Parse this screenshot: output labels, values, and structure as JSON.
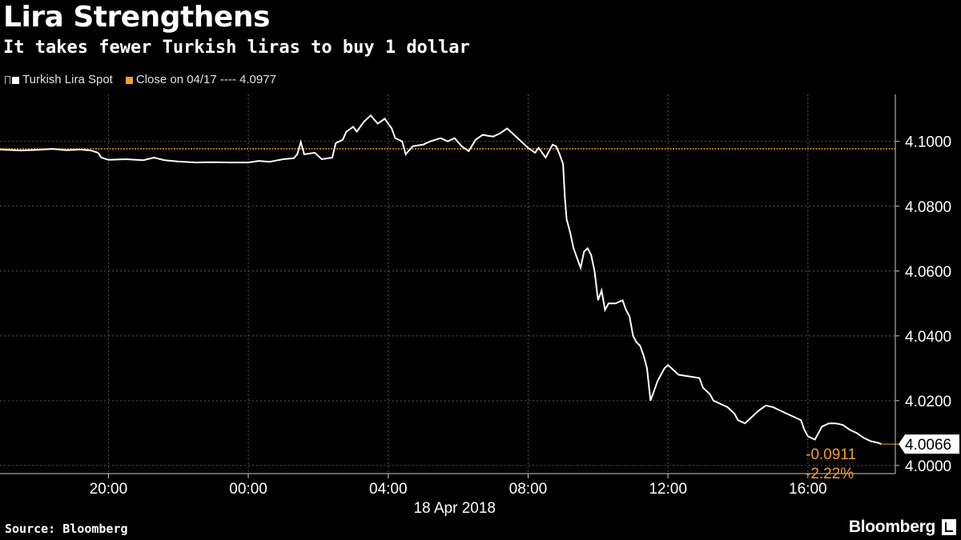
{
  "header": {
    "title": "Lira Strengthens",
    "subtitle": "It takes fewer Turkish liras to buy 1 dollar"
  },
  "legend": {
    "series_label": "Turkish Lira Spot",
    "close_label": "Close on 04/17 ---- 4.0977",
    "series_color": "#ffffff",
    "close_color": "#f39c28"
  },
  "footer": {
    "source": "Source: Bloomberg",
    "brand": "Bloomberg"
  },
  "chart_data": {
    "type": "line",
    "title": "Lira Strengthens",
    "subtitle": "It takes fewer Turkish liras to buy 1 dollar",
    "x_unit": "hours since 17 Apr 2018 00:00",
    "x_range": [
      16.9,
      42.5
    ],
    "x_ticks": [
      {
        "x": 20,
        "label": "20:00"
      },
      {
        "x": 24,
        "label": "00:00"
      },
      {
        "x": 28,
        "label": "04:00"
      },
      {
        "x": 32,
        "label": "08:00"
      },
      {
        "x": 36,
        "label": "12:00"
      },
      {
        "x": 40,
        "label": "16:00"
      }
    ],
    "date_label": "18 Apr 2018",
    "y_range": [
      3.9975,
      4.1145
    ],
    "y_ticks": [
      4.0,
      4.02,
      4.04,
      4.06,
      4.08,
      4.1
    ],
    "y_tick_labels": [
      "4.0000",
      "4.0200",
      "4.0400",
      "4.0600",
      "4.0800",
      "4.1000"
    ],
    "grid": true,
    "legend_position": "top-left",
    "series": [
      {
        "name": "Turkish Lira Spot",
        "color": "#ffffff",
        "points": [
          [
            16.9,
            4.0975
          ],
          [
            17.5,
            4.0972
          ],
          [
            18.0,
            4.0974
          ],
          [
            18.4,
            4.0977
          ],
          [
            18.8,
            4.0973
          ],
          [
            19.2,
            4.0975
          ],
          [
            19.5,
            4.0972
          ],
          [
            19.7,
            4.0965
          ],
          [
            19.8,
            4.095
          ],
          [
            20.0,
            4.0943
          ],
          [
            20.5,
            4.0945
          ],
          [
            21.0,
            4.0942
          ],
          [
            21.3,
            4.095
          ],
          [
            21.6,
            4.0942
          ],
          [
            22.0,
            4.0938
          ],
          [
            22.5,
            4.0935
          ],
          [
            23.0,
            4.0936
          ],
          [
            23.5,
            4.0935
          ],
          [
            24.0,
            4.0935
          ],
          [
            24.3,
            4.094
          ],
          [
            24.6,
            4.0937
          ],
          [
            25.0,
            4.0945
          ],
          [
            25.3,
            4.0948
          ],
          [
            25.4,
            4.096
          ],
          [
            25.5,
            4.0998
          ],
          [
            25.6,
            4.096
          ],
          [
            25.9,
            4.0965
          ],
          [
            26.1,
            4.0945
          ],
          [
            26.4,
            4.095
          ],
          [
            26.5,
            4.0995
          ],
          [
            26.7,
            4.1005
          ],
          [
            26.8,
            4.103
          ],
          [
            27.0,
            4.1045
          ],
          [
            27.1,
            4.103
          ],
          [
            27.3,
            4.106
          ],
          [
            27.5,
            4.108
          ],
          [
            27.7,
            4.1055
          ],
          [
            27.9,
            4.107
          ],
          [
            28.1,
            4.104
          ],
          [
            28.2,
            4.101
          ],
          [
            28.4,
            4.1
          ],
          [
            28.5,
            4.096
          ],
          [
            28.7,
            4.0985
          ],
          [
            29.0,
            4.099
          ],
          [
            29.2,
            4.1
          ],
          [
            29.5,
            4.101
          ],
          [
            29.7,
            4.1
          ],
          [
            29.9,
            4.101
          ],
          [
            30.1,
            4.0985
          ],
          [
            30.3,
            4.097
          ],
          [
            30.5,
            4.1005
          ],
          [
            30.7,
            4.102
          ],
          [
            31.0,
            4.1015
          ],
          [
            31.2,
            4.1025
          ],
          [
            31.4,
            4.104
          ],
          [
            31.6,
            4.102
          ],
          [
            31.8,
            4.1
          ],
          [
            32.0,
            4.098
          ],
          [
            32.2,
            4.0965
          ],
          [
            32.3,
            4.098
          ],
          [
            32.5,
            4.095
          ],
          [
            32.6,
            4.097
          ],
          [
            32.7,
            4.099
          ],
          [
            32.8,
            4.0985
          ],
          [
            32.9,
            4.096
          ],
          [
            33.0,
            4.093
          ],
          [
            33.05,
            4.083
          ],
          [
            33.1,
            4.076
          ],
          [
            33.2,
            4.072
          ],
          [
            33.3,
            4.067
          ],
          [
            33.4,
            4.064
          ],
          [
            33.5,
            4.061
          ],
          [
            33.6,
            4.066
          ],
          [
            33.7,
            4.067
          ],
          [
            33.8,
            4.065
          ],
          [
            33.9,
            4.06
          ],
          [
            34.0,
            4.051
          ],
          [
            34.1,
            4.054
          ],
          [
            34.2,
            4.048
          ],
          [
            34.3,
            4.05
          ],
          [
            34.5,
            4.05
          ],
          [
            34.7,
            4.051
          ],
          [
            34.8,
            4.048
          ],
          [
            34.9,
            4.046
          ],
          [
            35.0,
            4.04
          ],
          [
            35.1,
            4.038
          ],
          [
            35.2,
            4.037
          ],
          [
            35.3,
            4.034
          ],
          [
            35.4,
            4.03
          ],
          [
            35.5,
            4.02
          ],
          [
            35.6,
            4.023
          ],
          [
            35.7,
            4.026
          ],
          [
            35.8,
            4.028
          ],
          [
            35.9,
            4.03
          ],
          [
            36.0,
            4.031
          ],
          [
            36.1,
            4.03
          ],
          [
            36.3,
            4.028
          ],
          [
            36.6,
            4.0275
          ],
          [
            36.9,
            4.027
          ],
          [
            37.0,
            4.024
          ],
          [
            37.2,
            4.022
          ],
          [
            37.3,
            4.02
          ],
          [
            37.5,
            4.019
          ],
          [
            37.7,
            4.018
          ],
          [
            37.9,
            4.016
          ],
          [
            38.0,
            4.014
          ],
          [
            38.2,
            4.013
          ],
          [
            38.4,
            4.015
          ],
          [
            38.6,
            4.017
          ],
          [
            38.8,
            4.0185
          ],
          [
            39.0,
            4.018
          ],
          [
            39.2,
            4.017
          ],
          [
            39.4,
            4.016
          ],
          [
            39.6,
            4.015
          ],
          [
            39.8,
            4.014
          ],
          [
            39.9,
            4.011
          ],
          [
            40.0,
            4.009
          ],
          [
            40.2,
            4.008
          ],
          [
            40.4,
            4.012
          ],
          [
            40.6,
            4.013
          ],
          [
            40.8,
            4.013
          ],
          [
            41.0,
            4.0125
          ],
          [
            41.2,
            4.011
          ],
          [
            41.4,
            4.01
          ],
          [
            41.6,
            4.0085
          ],
          [
            41.8,
            4.0075
          ],
          [
            42.0,
            4.007
          ],
          [
            42.1,
            4.0066
          ]
        ]
      },
      {
        "name": "Close on 04/17",
        "color": "#f39c28",
        "value": 4.0977
      }
    ],
    "last_value": {
      "label": "4.0066",
      "value": 4.0066
    },
    "annotations": [
      {
        "text": "-0.0911",
        "color": "#f39c28"
      },
      {
        "text": "-2.22%",
        "color": "#f39c28"
      }
    ]
  }
}
